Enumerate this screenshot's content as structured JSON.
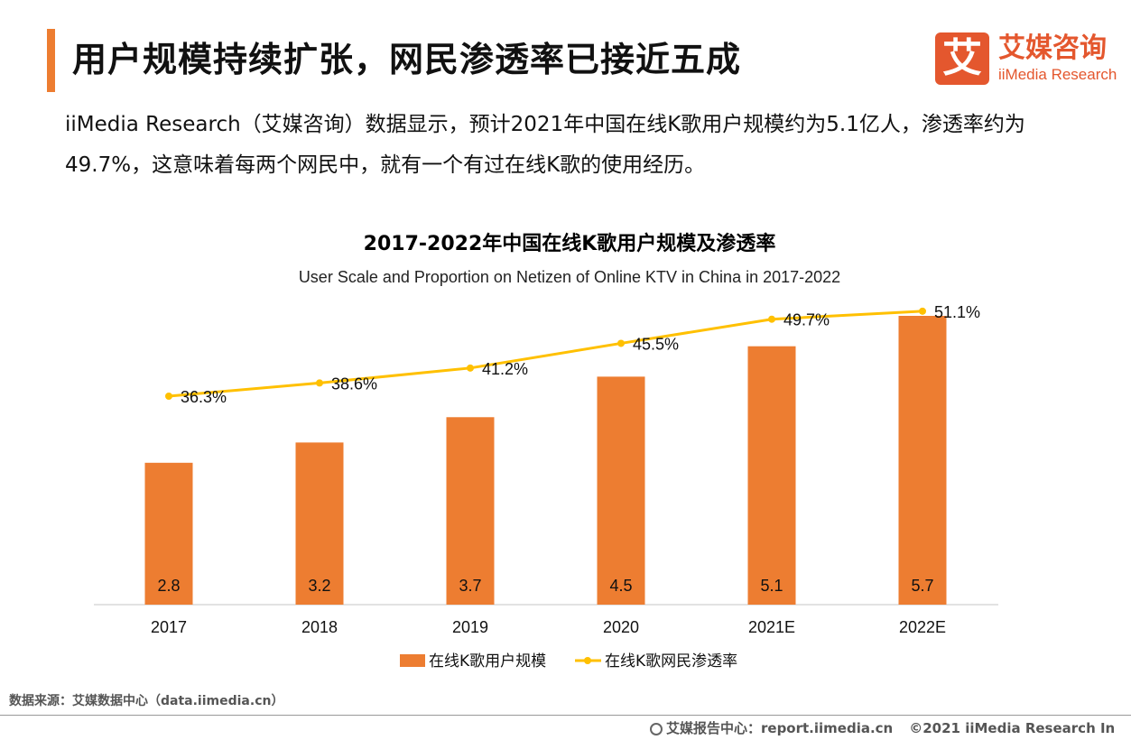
{
  "header": {
    "title": "用户规模持续扩张，网民渗透率已接近五成",
    "accent_color": "#ed7d31"
  },
  "logo": {
    "mark": "艾",
    "cn": "艾媒咨询",
    "en": "iiMedia Research",
    "color": "#e4572e"
  },
  "intro": {
    "text": "iiMedia  Research（艾媒咨询）数据显示，预计2021年中国在线K歌用户规模约为5.1亿人，渗透率约为49.7%，这意味着每两个网民中，就有一个有过在线K歌的使用经历。"
  },
  "chart_data": {
    "type": "bar+line",
    "title": "2017-2022年中国在线K歌用户规模及渗透率",
    "subtitle": "User Scale and Proportion on Netizen of Online KTV in China in 2017-2022",
    "categories": [
      "2017",
      "2018",
      "2019",
      "2020",
      "2021E",
      "2022E"
    ],
    "series": [
      {
        "name": "在线K歌用户规模",
        "type": "bar",
        "values": [
          2.8,
          3.2,
          3.7,
          4.5,
          5.1,
          5.7
        ],
        "labels": [
          "2.8",
          "3.2",
          "3.7",
          "4.5",
          "5.1",
          "5.7"
        ],
        "color": "#ed7d31"
      },
      {
        "name": "在线K歌网民渗透率",
        "type": "line",
        "values": [
          36.3,
          38.6,
          41.2,
          45.5,
          49.7,
          51.1
        ],
        "labels": [
          "36.3%",
          "38.6%",
          "41.2%",
          "45.5%",
          "49.7%",
          "51.1%"
        ],
        "color": "#ffc000"
      }
    ],
    "bar_ylim": [
      0,
      5.7
    ],
    "line_ylim": [
      0,
      55
    ],
    "legend_position": "bottom",
    "grid": false
  },
  "footer": {
    "source": "数据来源：艾媒数据中心（data.iimedia.cn）",
    "report": "艾媒报告中心：report.iimedia.cn",
    "copyright": "©2021  iiMedia Research  In"
  }
}
